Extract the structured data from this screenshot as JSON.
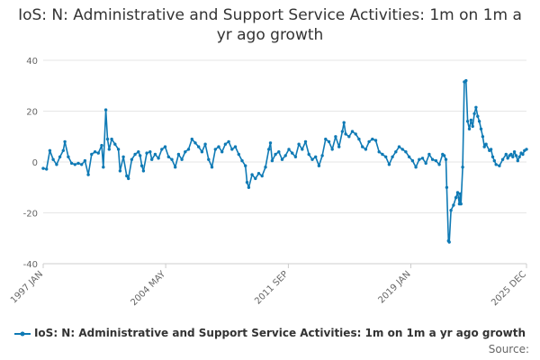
{
  "title": "IoS: N: Administrative and Support Service Activities: 1m on 1m a yr ago growth",
  "source_label": "Source:",
  "colors": {
    "series": "#0f7ab5",
    "grid": "#e6e6e6",
    "axis": "#cccccc"
  },
  "chart_data": {
    "type": "line",
    "title": "IoS: N: Administrative and Support Service Activities: 1m on 1m a yr ago growth",
    "xlabel": "",
    "ylabel": "",
    "xlim": [
      1997.0,
      2025.92
    ],
    "ylim": [
      -40,
      40
    ],
    "yticks": [
      -40,
      -20,
      0,
      20,
      40
    ],
    "xticks": [
      {
        "label": "1997 JAN",
        "x": 1997.0
      },
      {
        "label": "2004 MAY",
        "x": 2004.33
      },
      {
        "label": "2011 SEP",
        "x": 2011.67
      },
      {
        "label": "2019 JAN",
        "x": 2019.0
      },
      {
        "label": "2025 DEC",
        "x": 2025.92
      }
    ],
    "grid": true,
    "legend_position": "bottom",
    "series": [
      {
        "name": "IoS: N: Administrative and Support Service Activities: 1m on 1m a yr ago growth",
        "points": [
          [
            1997.0,
            -2.5
          ],
          [
            1997.2,
            -2.8
          ],
          [
            1997.4,
            4.5
          ],
          [
            1997.6,
            1.0
          ],
          [
            1997.8,
            -1.0
          ],
          [
            1998.0,
            2.0
          ],
          [
            1998.2,
            4.5
          ],
          [
            1998.3,
            8.0
          ],
          [
            1998.5,
            2.0
          ],
          [
            1998.7,
            -0.5
          ],
          [
            1998.9,
            -1.0
          ],
          [
            1999.1,
            -0.5
          ],
          [
            1999.3,
            -1.0
          ],
          [
            1999.5,
            0.5
          ],
          [
            1999.7,
            -5.0
          ],
          [
            1999.9,
            3.0
          ],
          [
            2000.1,
            4.0
          ],
          [
            2000.3,
            3.5
          ],
          [
            2000.5,
            6.5
          ],
          [
            2000.6,
            -2.0
          ],
          [
            2000.75,
            20.5
          ],
          [
            2000.85,
            9.0
          ],
          [
            2000.95,
            5.0
          ],
          [
            2001.1,
            9.0
          ],
          [
            2001.3,
            7.0
          ],
          [
            2001.5,
            5.0
          ],
          [
            2001.6,
            -3.5
          ],
          [
            2001.8,
            2.0
          ],
          [
            2002.0,
            -5.5
          ],
          [
            2002.1,
            -6.5
          ],
          [
            2002.3,
            1.0
          ],
          [
            2002.5,
            3.0
          ],
          [
            2002.7,
            4.0
          ],
          [
            2002.8,
            2.5
          ],
          [
            2002.9,
            -1.5
          ],
          [
            2003.0,
            -3.5
          ],
          [
            2003.2,
            3.5
          ],
          [
            2003.4,
            4.0
          ],
          [
            2003.5,
            1.0
          ],
          [
            2003.7,
            3.0
          ],
          [
            2003.9,
            1.5
          ],
          [
            2004.1,
            5.0
          ],
          [
            2004.3,
            6.0
          ],
          [
            2004.5,
            2.0
          ],
          [
            2004.7,
            1.0
          ],
          [
            2004.9,
            -2.0
          ],
          [
            2005.1,
            3.0
          ],
          [
            2005.3,
            1.0
          ],
          [
            2005.5,
            4.0
          ],
          [
            2005.7,
            5.0
          ],
          [
            2005.9,
            9.0
          ],
          [
            2006.1,
            7.5
          ],
          [
            2006.3,
            6.0
          ],
          [
            2006.5,
            4.0
          ],
          [
            2006.7,
            7.0
          ],
          [
            2006.9,
            1.0
          ],
          [
            2007.1,
            -2.0
          ],
          [
            2007.3,
            5.0
          ],
          [
            2007.5,
            6.0
          ],
          [
            2007.7,
            4.0
          ],
          [
            2007.9,
            7.0
          ],
          [
            2008.1,
            8.0
          ],
          [
            2008.3,
            5.0
          ],
          [
            2008.5,
            6.0
          ],
          [
            2008.7,
            3.0
          ],
          [
            2008.9,
            0.5
          ],
          [
            2009.1,
            -1.5
          ],
          [
            2009.2,
            -8.0
          ],
          [
            2009.3,
            -10.0
          ],
          [
            2009.5,
            -5.0
          ],
          [
            2009.7,
            -6.5
          ],
          [
            2009.9,
            -4.5
          ],
          [
            2010.1,
            -5.5
          ],
          [
            2010.3,
            -2.0
          ],
          [
            2010.5,
            5.0
          ],
          [
            2010.6,
            7.5
          ],
          [
            2010.7,
            0.5
          ],
          [
            2010.9,
            3.0
          ],
          [
            2011.1,
            4.0
          ],
          [
            2011.3,
            1.0
          ],
          [
            2011.5,
            2.5
          ],
          [
            2011.7,
            5.0
          ],
          [
            2011.9,
            3.5
          ],
          [
            2012.1,
            2.0
          ],
          [
            2012.3,
            7.0
          ],
          [
            2012.5,
            5.0
          ],
          [
            2012.7,
            8.0
          ],
          [
            2012.9,
            3.0
          ],
          [
            2013.1,
            1.0
          ],
          [
            2013.3,
            2.0
          ],
          [
            2013.5,
            -1.5
          ],
          [
            2013.7,
            2.5
          ],
          [
            2013.9,
            9.0
          ],
          [
            2014.1,
            8.0
          ],
          [
            2014.3,
            5.0
          ],
          [
            2014.5,
            10.0
          ],
          [
            2014.7,
            6.0
          ],
          [
            2014.9,
            12.0
          ],
          [
            2015.0,
            15.5
          ],
          [
            2015.1,
            11.0
          ],
          [
            2015.3,
            10.0
          ],
          [
            2015.5,
            12.0
          ],
          [
            2015.7,
            11.0
          ],
          [
            2015.9,
            9.0
          ],
          [
            2016.1,
            6.0
          ],
          [
            2016.3,
            5.0
          ],
          [
            2016.5,
            8.0
          ],
          [
            2016.7,
            9.0
          ],
          [
            2016.9,
            8.5
          ],
          [
            2017.1,
            4.0
          ],
          [
            2017.3,
            3.0
          ],
          [
            2017.5,
            2.0
          ],
          [
            2017.7,
            -1.0
          ],
          [
            2017.9,
            2.0
          ],
          [
            2018.1,
            4.0
          ],
          [
            2018.3,
            6.0
          ],
          [
            2018.5,
            5.0
          ],
          [
            2018.7,
            4.0
          ],
          [
            2018.9,
            2.0
          ],
          [
            2019.1,
            0.5
          ],
          [
            2019.3,
            -2.0
          ],
          [
            2019.5,
            1.0
          ],
          [
            2019.7,
            1.5
          ],
          [
            2019.9,
            -0.5
          ],
          [
            2020.1,
            3.0
          ],
          [
            2020.3,
            1.0
          ],
          [
            2020.5,
            0.5
          ],
          [
            2020.7,
            -1.0
          ],
          [
            2020.9,
            3.0
          ],
          [
            2021.0,
            2.5
          ],
          [
            2021.1,
            1.0
          ],
          [
            2021.15,
            -10.0
          ],
          [
            2021.25,
            -31.0
          ],
          [
            2021.3,
            -31.5
          ],
          [
            2021.4,
            -19.0
          ],
          [
            2021.55,
            -17.0
          ],
          [
            2021.7,
            -14.0
          ],
          [
            2021.8,
            -12.0
          ],
          [
            2021.9,
            -16.5
          ],
          [
            2021.95,
            -12.5
          ],
          [
            2022.0,
            -16.5
          ],
          [
            2022.1,
            -2.0
          ],
          [
            2022.2,
            31.5
          ],
          [
            2022.3,
            32.0
          ],
          [
            2022.4,
            16.0
          ],
          [
            2022.5,
            13.0
          ],
          [
            2022.6,
            16.5
          ],
          [
            2022.7,
            14.0
          ],
          [
            2022.8,
            19.0
          ],
          [
            2022.9,
            21.5
          ],
          [
            2023.0,
            18.0
          ],
          [
            2023.1,
            16.0
          ],
          [
            2023.2,
            13.0
          ],
          [
            2023.3,
            10.0
          ],
          [
            2023.4,
            6.0
          ],
          [
            2023.5,
            7.0
          ],
          [
            2023.7,
            4.5
          ],
          [
            2023.8,
            5.0
          ],
          [
            2023.9,
            2.0
          ],
          [
            2024.0,
            0.5
          ],
          [
            2024.1,
            -1.0
          ],
          [
            2024.3,
            -1.5
          ],
          [
            2024.5,
            1.0
          ],
          [
            2024.7,
            3.0
          ],
          [
            2024.8,
            1.5
          ],
          [
            2024.9,
            2.5
          ],
          [
            2025.0,
            3.0
          ],
          [
            2025.1,
            2.0
          ],
          [
            2025.2,
            4.0
          ],
          [
            2025.3,
            2.5
          ],
          [
            2025.4,
            0.5
          ],
          [
            2025.5,
            2.0
          ],
          [
            2025.6,
            3.5
          ],
          [
            2025.7,
            3.0
          ],
          [
            2025.8,
            4.5
          ],
          [
            2025.92,
            5.0
          ]
        ]
      }
    ]
  }
}
